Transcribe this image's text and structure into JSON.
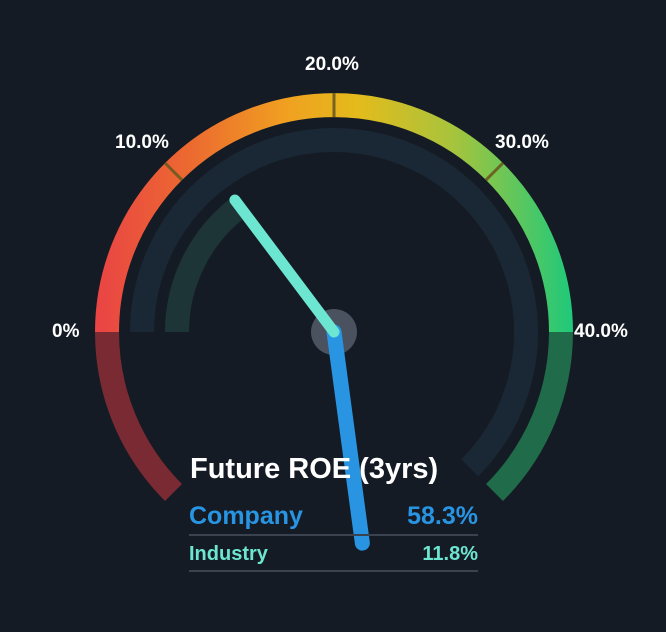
{
  "title": "Future ROE (3yrs)",
  "colors": {
    "background": "#151b24",
    "company": "#2894e2",
    "industry": "#6de6d1",
    "track": "#1a2734",
    "pivot": "#4a5260"
  },
  "chart_data": {
    "type": "gauge",
    "title": "Future ROE (3yrs)",
    "scale_min": 0,
    "scale_max": 40,
    "ticks": [
      {
        "value": 0,
        "label": "0%"
      },
      {
        "value": 10,
        "label": "10.0%"
      },
      {
        "value": 20,
        "label": "20.0%"
      },
      {
        "value": 30,
        "label": "30.0%"
      },
      {
        "value": 40,
        "label": "40.0%"
      }
    ],
    "series": [
      {
        "name": "Company",
        "value": 58.3,
        "label": "58.3%",
        "color": "#2894e2"
      },
      {
        "name": "Industry",
        "value": 11.8,
        "label": "11.8%",
        "color": "#6de6d1"
      }
    ]
  }
}
